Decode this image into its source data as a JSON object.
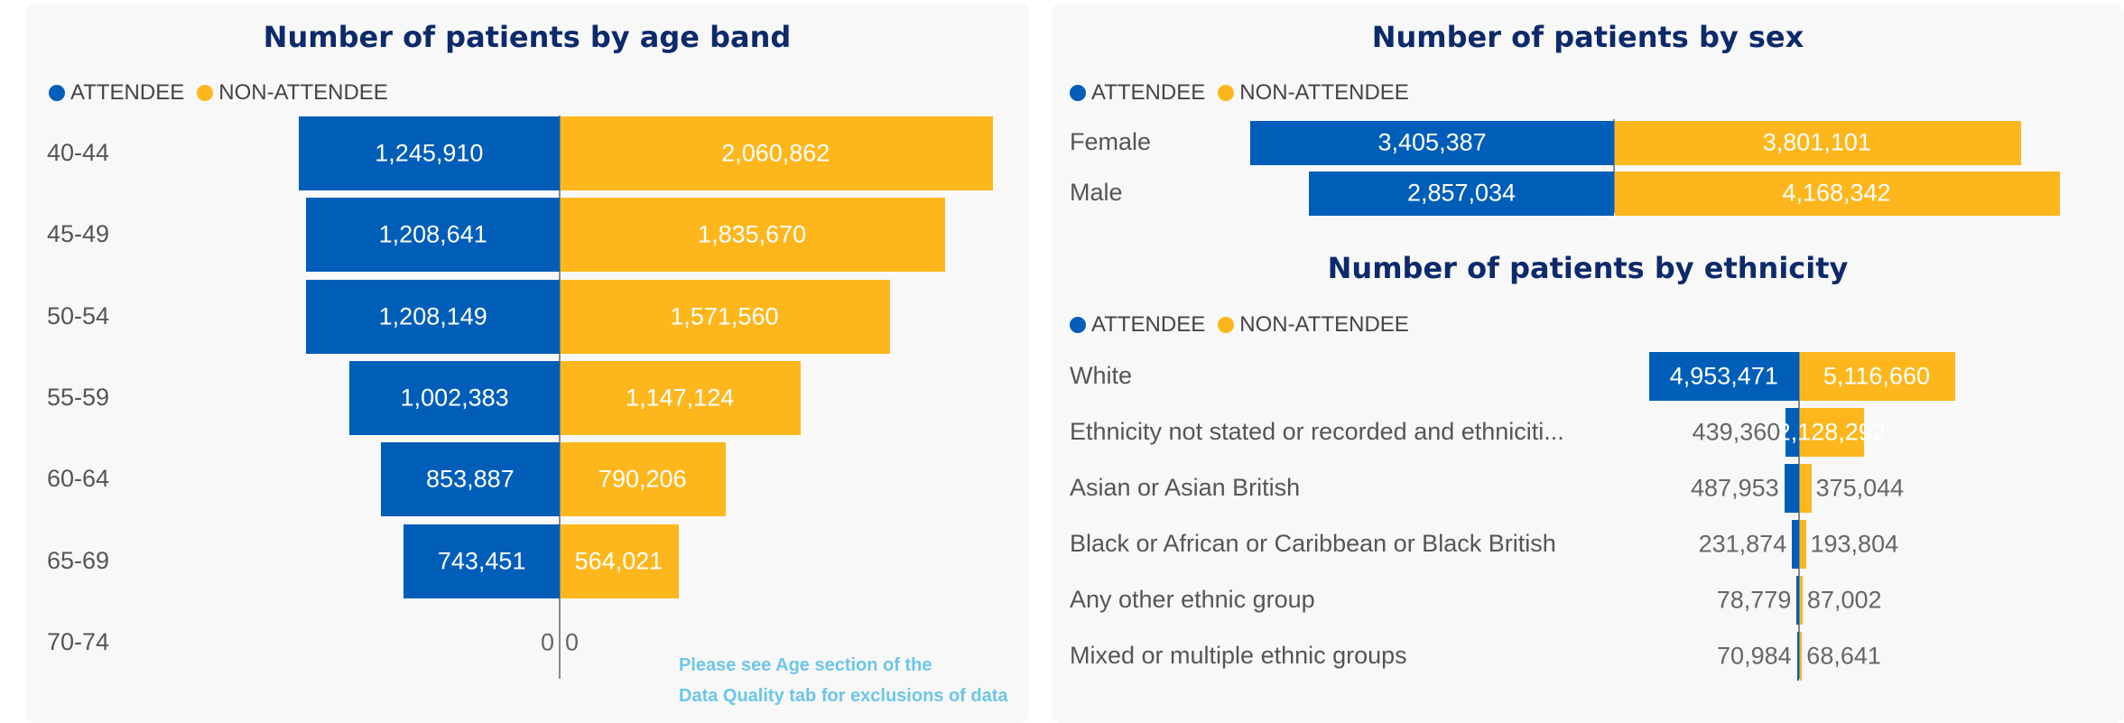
{
  "colors": {
    "attendee": "#005eb8",
    "non_attendee": "#fdb71d"
  },
  "legend": {
    "attendee_label": "ATTENDEE",
    "non_attendee_label": "NON-ATTENDEE"
  },
  "age_note": [
    "Please see Age section of the",
    "Data Quality tab for exclusions of data"
  ],
  "chart_data": [
    {
      "id": "age",
      "type": "bar",
      "orientation": "diverging-horizontal",
      "title": "Number of patients by age band",
      "categories": [
        "40-44",
        "45-49",
        "50-54",
        "55-59",
        "60-64",
        "65-69",
        "70-74"
      ],
      "series": [
        {
          "name": "ATTENDEE",
          "values": [
            1245910,
            1208641,
            1208149,
            1002383,
            853887,
            743451,
            0
          ]
        },
        {
          "name": "NON-ATTENDEE",
          "values": [
            2060862,
            1835670,
            1571560,
            1147124,
            790206,
            564021,
            0
          ]
        }
      ],
      "data_labels": {
        "ATTENDEE": [
          "1,245,910",
          "1,208,641",
          "1,208,149",
          "1,002,383",
          "853,887",
          "743,451",
          "0"
        ],
        "NON-ATTENDEE": [
          "2,060,862",
          "1,835,670",
          "1,571,560",
          "1,147,124",
          "790,206",
          "564,021",
          "0"
        ]
      }
    },
    {
      "id": "sex",
      "type": "bar",
      "orientation": "diverging-horizontal",
      "title": "Number of patients by sex",
      "categories": [
        "Female",
        "Male"
      ],
      "series": [
        {
          "name": "ATTENDEE",
          "values": [
            3405387,
            2857034
          ]
        },
        {
          "name": "NON-ATTENDEE",
          "values": [
            3801101,
            4168342
          ]
        }
      ],
      "data_labels": {
        "ATTENDEE": [
          "3,405,387",
          "2,857,034"
        ],
        "NON-ATTENDEE": [
          "3,801,101",
          "4,168,342"
        ]
      }
    },
    {
      "id": "ethnicity",
      "type": "bar",
      "orientation": "diverging-horizontal",
      "title": "Number of patients by ethnicity",
      "categories": [
        "White",
        "Ethnicity not stated or recorded and ethniciti...",
        "Asian or Asian British",
        "Black or African or Caribbean or Black British",
        "Any other ethnic group",
        "Mixed or multiple ethnic groups"
      ],
      "series": [
        {
          "name": "ATTENDEE",
          "values": [
            4953471,
            439360,
            487953,
            231874,
            78779,
            70984
          ]
        },
        {
          "name": "NON-ATTENDEE",
          "values": [
            5116660,
            2128292,
            375044,
            193804,
            87002,
            68641
          ]
        }
      ],
      "data_labels": {
        "ATTENDEE": [
          "4,953,471",
          "439,360",
          "487,953",
          "231,874",
          "78,779",
          "70,984"
        ],
        "NON-ATTENDEE": [
          "5,116,660",
          "2,128,292",
          "375,044",
          "193,804",
          "87,002",
          "68,641"
        ]
      }
    }
  ]
}
